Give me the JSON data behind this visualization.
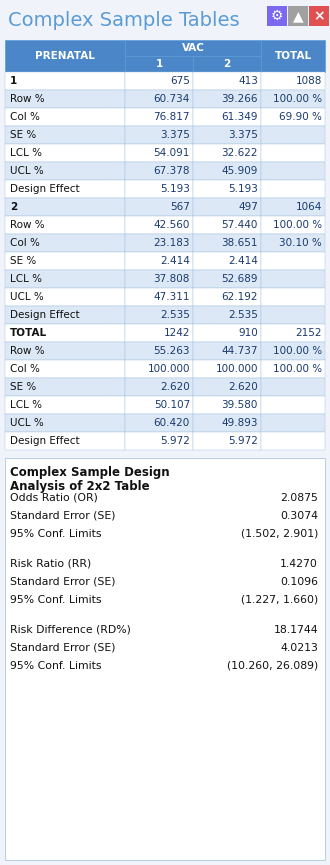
{
  "title": "Complex Sample Tables",
  "title_color": "#5b9bd5",
  "bg_color": "#f0f4fa",
  "header_bg": "#4a86c8",
  "header_text": "#ffffff",
  "row_alt_bg": "#dce8f5",
  "row_white_bg": "#ffffff",
  "border_color": "#a0bfdf",
  "icons": [
    {
      "symbol": "⚙",
      "bg": "#7b68ee"
    },
    {
      "symbol": "▲",
      "bg": "#a0a0a0"
    },
    {
      "symbol": "×",
      "bg": "#e05050"
    }
  ],
  "table_rows": [
    {
      "label": "1",
      "v1": "675",
      "v2": "413",
      "total": "1088",
      "bold": true
    },
    {
      "label": "Row %",
      "v1": "60.734",
      "v2": "39.266",
      "total": "100.00 %",
      "bold": false
    },
    {
      "label": "Col %",
      "v1": "76.817",
      "v2": "61.349",
      "total": "69.90 %",
      "bold": false
    },
    {
      "label": "SE %",
      "v1": "3.375",
      "v2": "3.375",
      "total": "",
      "bold": false
    },
    {
      "label": "LCL %",
      "v1": "54.091",
      "v2": "32.622",
      "total": "",
      "bold": false
    },
    {
      "label": "UCL %",
      "v1": "67.378",
      "v2": "45.909",
      "total": "",
      "bold": false
    },
    {
      "label": "Design Effect",
      "v1": "5.193",
      "v2": "5.193",
      "total": "",
      "bold": false
    },
    {
      "label": "2",
      "v1": "567",
      "v2": "497",
      "total": "1064",
      "bold": true
    },
    {
      "label": "Row %",
      "v1": "42.560",
      "v2": "57.440",
      "total": "100.00 %",
      "bold": false
    },
    {
      "label": "Col %",
      "v1": "23.183",
      "v2": "38.651",
      "total": "30.10 %",
      "bold": false
    },
    {
      "label": "SE %",
      "v1": "2.414",
      "v2": "2.414",
      "total": "",
      "bold": false
    },
    {
      "label": "LCL %",
      "v1": "37.808",
      "v2": "52.689",
      "total": "",
      "bold": false
    },
    {
      "label": "UCL %",
      "v1": "47.311",
      "v2": "62.192",
      "total": "",
      "bold": false
    },
    {
      "label": "Design Effect",
      "v1": "2.535",
      "v2": "2.535",
      "total": "",
      "bold": false
    },
    {
      "label": "TOTAL",
      "v1": "1242",
      "v2": "910",
      "total": "2152",
      "bold": true
    },
    {
      "label": "Row %",
      "v1": "55.263",
      "v2": "44.737",
      "total": "100.00 %",
      "bold": false
    },
    {
      "label": "Col %",
      "v1": "100.000",
      "v2": "100.000",
      "total": "100.00 %",
      "bold": false
    },
    {
      "label": "SE %",
      "v1": "2.620",
      "v2": "2.620",
      "total": "",
      "bold": false
    },
    {
      "label": "LCL %",
      "v1": "50.107",
      "v2": "39.580",
      "total": "",
      "bold": false
    },
    {
      "label": "UCL %",
      "v1": "60.420",
      "v2": "49.893",
      "total": "",
      "bold": false
    },
    {
      "label": "Design Effect",
      "v1": "5.972",
      "v2": "5.972",
      "total": "",
      "bold": false
    }
  ],
  "analysis_title_line1": "Complex Sample Design",
  "analysis_title_line2": "Analysis of 2x2 Table",
  "analysis_groups": [
    [
      {
        "label": "Odds Ratio (OR)",
        "value": "2.0875"
      },
      {
        "label": "Standard Error (SE)",
        "value": "0.3074"
      },
      {
        "label": "95% Conf. Limits",
        "value": "(1.502, 2.901)"
      }
    ],
    [
      {
        "label": "Risk Ratio (RR)",
        "value": "1.4270"
      },
      {
        "label": "Standard Error (SE)",
        "value": "0.1096"
      },
      {
        "label": "95% Conf. Limits",
        "value": "(1.227, 1.660)"
      }
    ],
    [
      {
        "label": "Risk Difference (RD%)",
        "value": "18.1744"
      },
      {
        "label": "Standard Error (SE)",
        "value": "4.0213"
      },
      {
        "label": "95% Conf. Limits",
        "value": "(10.260, 26.089)"
      }
    ]
  ]
}
